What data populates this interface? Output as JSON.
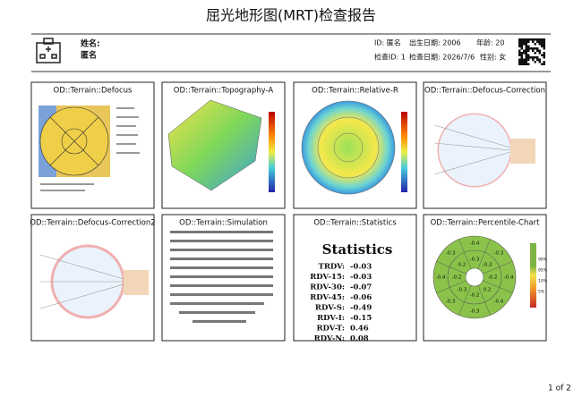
{
  "header": {
    "title": "屈光地形图(MRT)检查报告",
    "name_label": "姓名:",
    "name_value": "匿名",
    "id": "ID: 匿名",
    "birth": "出生日期: 2006",
    "age": "年龄: 20",
    "exam_id": "检查ID: 1",
    "exam_date": "检查日期: 2026/7/6",
    "sex": "性别: 女"
  },
  "panels": [
    {
      "title": "OD::Terrain::Defocus"
    },
    {
      "title": "OD::Terrain::Topography-A"
    },
    {
      "title": "OD::Terrain::Relative-R"
    },
    {
      "title": "OD::Terrain::Defocus-Correction"
    },
    {
      "title": "OD::Terrain::Defocus-Correction2"
    },
    {
      "title": "OD::Terrain::Simulation"
    },
    {
      "title": "OD::Terrain::Statistics"
    },
    {
      "title": "OD::Terrain::Percentile-Chart"
    }
  ],
  "statistics": {
    "heading": "Statistics",
    "rows": [
      [
        "TRDV:",
        "-0.03"
      ],
      [
        "RDV-15:",
        "-0.03"
      ],
      [
        "RDV-30:",
        "-0.07"
      ],
      [
        "RDV-45:",
        "-0.06"
      ],
      [
        "RDV-S:",
        "-0.49"
      ],
      [
        "RDV-I:",
        "-0.15"
      ],
      [
        "RDV-T:",
        "0.46"
      ],
      [
        "RDV-N:",
        "0.08"
      ]
    ]
  },
  "percentile": {
    "outer": [
      "-0.4",
      "-0.3",
      "-0.4",
      "-0.4",
      "-0.3",
      "-0.3",
      "-0.4",
      "-0.3"
    ],
    "middle": [
      "-0.3",
      "-0.3",
      "-0.2",
      "0.2",
      "-0.2",
      "-0.3",
      "-0.2",
      "0.2"
    ],
    "scale": [
      "99%",
      "95%",
      "10%",
      "5%"
    ]
  },
  "footer": {
    "page": "1 of 2"
  }
}
